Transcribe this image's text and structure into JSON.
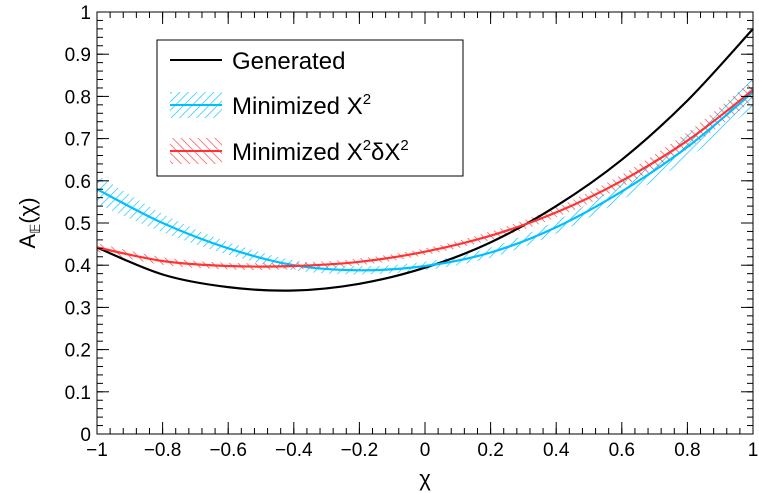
{
  "chart_data": {
    "type": "line",
    "xlabel": "χ",
    "ylabel_main": "A",
    "ylabel_sub": "𝔼",
    "ylabel_tail": "(χ)",
    "xlim": [
      -1,
      1
    ],
    "ylim": [
      0,
      1
    ],
    "x_ticks": [
      -1,
      -0.8,
      -0.6,
      -0.4,
      -0.2,
      0,
      0.2,
      0.4,
      0.6,
      0.8,
      1
    ],
    "x_tick_labels": [
      "−1",
      "−0.8",
      "−0.6",
      "−0.4",
      "−0.2",
      "0",
      "0.2",
      "0.4",
      "0.6",
      "0.8",
      "1"
    ],
    "y_ticks": [
      0,
      0.1,
      0.2,
      0.3,
      0.4,
      0.5,
      0.6,
      0.7,
      0.8,
      0.9,
      1
    ],
    "y_tick_labels": [
      "0",
      "0.1",
      "0.2",
      "0.3",
      "0.4",
      "0.5",
      "0.6",
      "0.7",
      "0.8",
      "0.9",
      "1"
    ],
    "legend_position": "top-left",
    "series": [
      {
        "name": "Generated",
        "color": "#000000",
        "band": false,
        "x": [
          -1,
          -0.8,
          -0.6,
          -0.4,
          -0.2,
          0,
          0.2,
          0.4,
          0.6,
          0.8,
          1
        ],
        "y": [
          0.442,
          0.378,
          0.348,
          0.34,
          0.356,
          0.394,
          0.454,
          0.54,
          0.65,
          0.79,
          0.96
        ]
      },
      {
        "name": "Minimized X",
        "name_sup": "2",
        "color": "#00bfff",
        "band": true,
        "band_halfwidth": [
          0.035,
          0.022,
          0.015,
          0.012,
          0.01,
          0.01,
          0.012,
          0.015,
          0.02,
          0.028,
          0.035
        ],
        "x": [
          -1,
          -0.8,
          -0.6,
          -0.4,
          -0.2,
          0,
          0.2,
          0.4,
          0.6,
          0.8,
          1
        ],
        "y": [
          0.58,
          0.5,
          0.44,
          0.4,
          0.388,
          0.398,
          0.43,
          0.49,
          0.575,
          0.68,
          0.81
        ]
      },
      {
        "name": "Minimized X",
        "name_sup": "2",
        "name_mid": "δX",
        "name_sup2": "2",
        "color": "#ff3333",
        "band": true,
        "band_halfwidth": [
          0.01,
          0.009,
          0.008,
          0.008,
          0.008,
          0.008,
          0.01,
          0.012,
          0.015,
          0.02,
          0.025
        ],
        "x": [
          -1,
          -0.8,
          -0.6,
          -0.4,
          -0.2,
          0,
          0.2,
          0.4,
          0.6,
          0.8,
          1
        ],
        "y": [
          0.442,
          0.41,
          0.398,
          0.398,
          0.408,
          0.432,
          0.47,
          0.525,
          0.6,
          0.695,
          0.815
        ]
      }
    ]
  }
}
